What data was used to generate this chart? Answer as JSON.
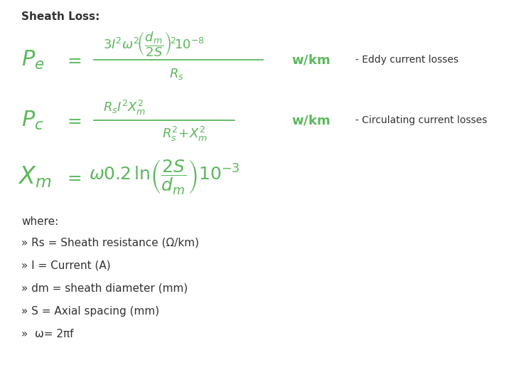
{
  "title": "Sheath Loss:",
  "bg_color": "#ffffff",
  "green_color": "#5cb85c",
  "black_color": "#333333",
  "figsize": [
    7.19,
    5.34
  ],
  "dpi": 100,
  "where_text": "where:",
  "bullet1": "» Rs = Sheath resistance (Ω/km)",
  "bullet2": "» I = Current (A)",
  "bullet3": "» dm = sheath diameter (mm)",
  "bullet4": "» S = Axial spacing (mm)",
  "bullet5": "»  ω= 2πf"
}
